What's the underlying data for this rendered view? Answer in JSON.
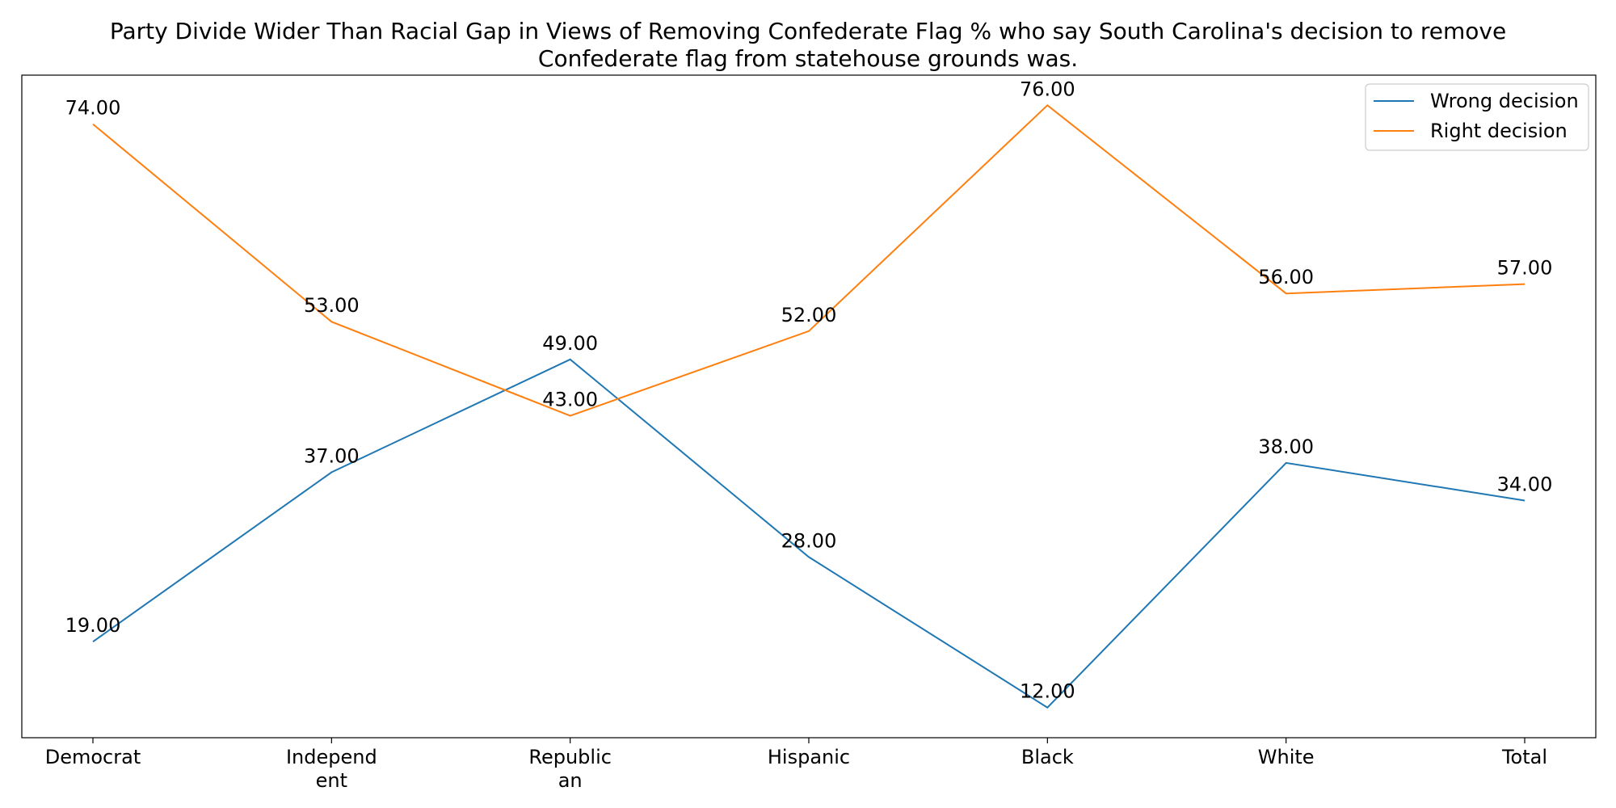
{
  "chart_data": {
    "type": "line",
    "title": "Party Divide Wider Than Racial Gap in Views of Removing Confederate Flag % who say South Carolina's decision to remove",
    "title_line2": "Confederate flag from statehouse grounds was.",
    "categories": [
      "Democrat",
      "Independ\nent",
      "Republic\nan",
      "Hispanic",
      "Black",
      "White",
      "Total"
    ],
    "series": [
      {
        "name": "Wrong decision",
        "color": "#1f77b4",
        "values": [
          19,
          37,
          49,
          28,
          12,
          38,
          34
        ]
      },
      {
        "name": "Right decision",
        "color": "#ff7f0e",
        "values": [
          74,
          53,
          43,
          52,
          76,
          56,
          57
        ]
      }
    ],
    "value_format": "fixed-2",
    "xlabel": "",
    "ylabel": "",
    "ylim": [
      8.8,
      79.2
    ],
    "y_ticks_shown": false,
    "grid": false,
    "legend_position": "top-right"
  }
}
